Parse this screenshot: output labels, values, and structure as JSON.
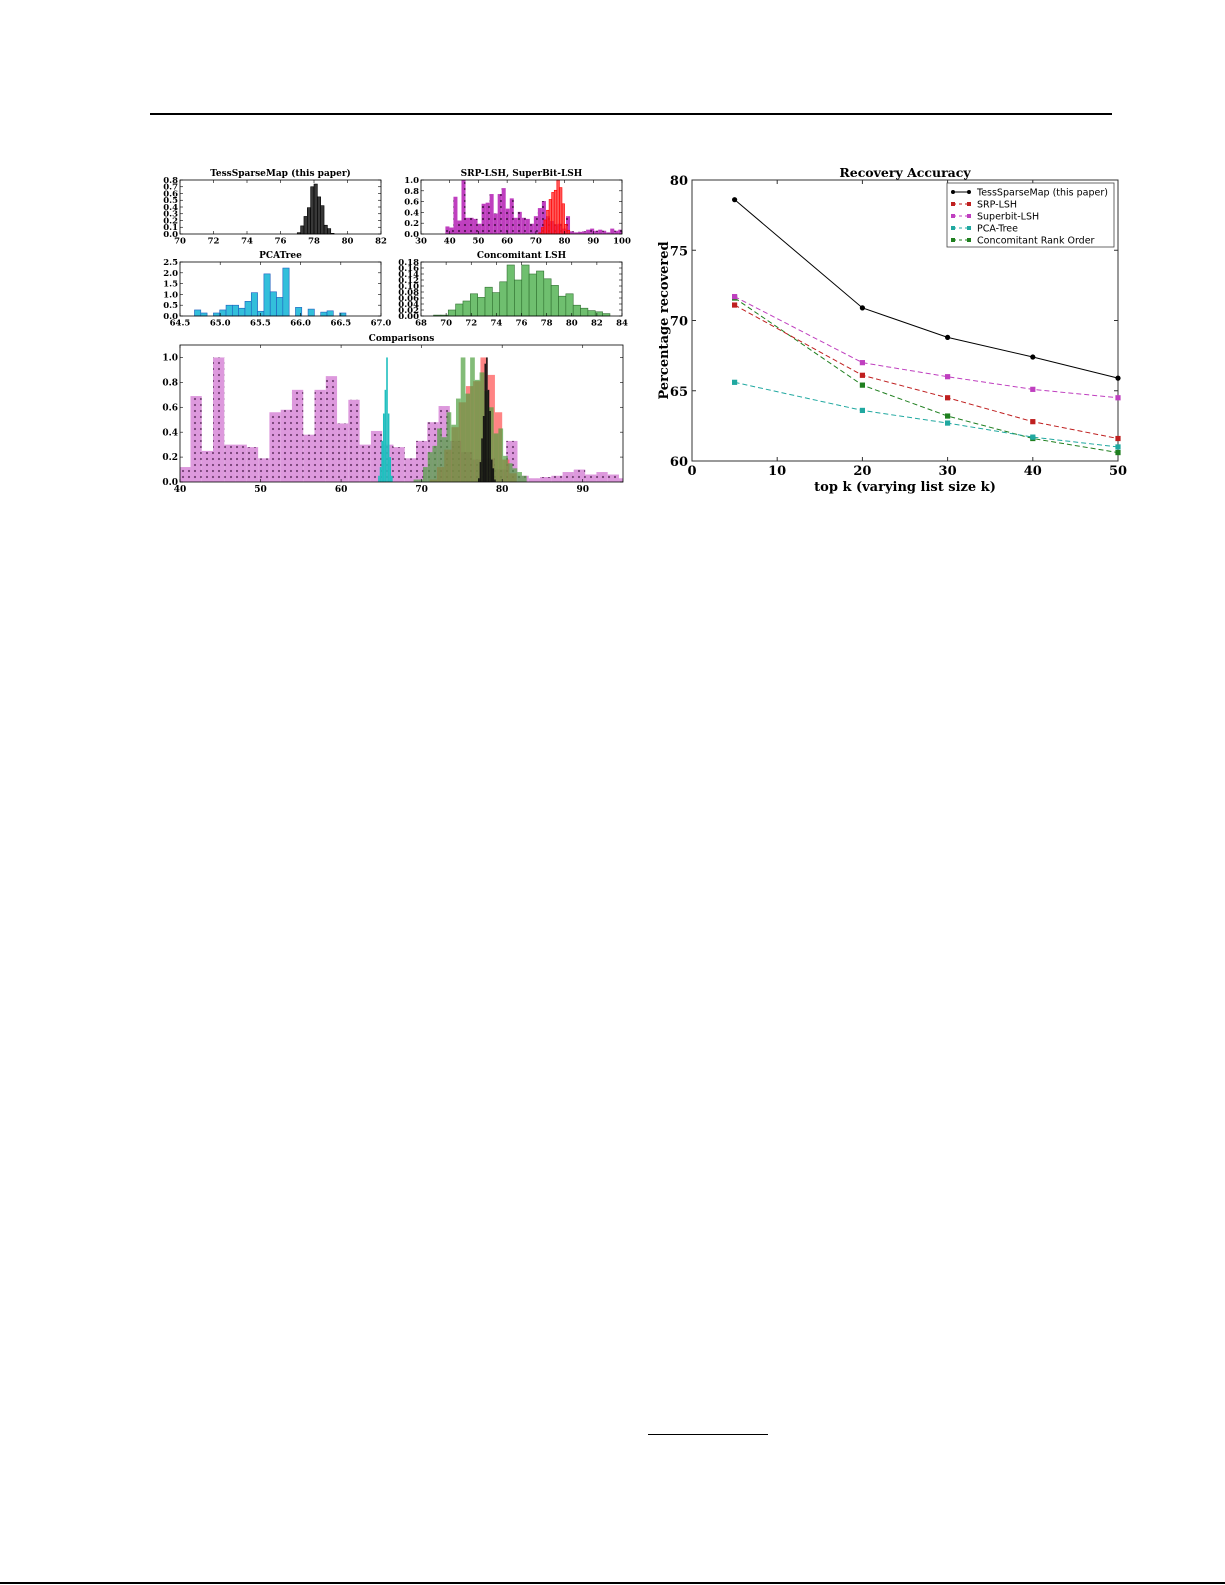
{
  "page": {
    "header_rule": true,
    "footnote_rule": true
  },
  "chart_data": [
    {
      "id": "tess",
      "type": "bar",
      "title": "TessSparseMap (this paper)",
      "xlim": [
        70,
        82
      ],
      "ylim": [
        0,
        0.8
      ],
      "xticks": [
        "70",
        "72",
        "74",
        "76",
        "78",
        "80",
        "82"
      ],
      "yticks": [
        "0.0",
        "0.1",
        "0.2",
        "0.3",
        "0.4",
        "0.5",
        "0.6",
        "0.7",
        "0.8"
      ],
      "bin_start": 77.0,
      "bin_width": 0.2,
      "values": [
        0.02,
        0.12,
        0.26,
        0.39,
        0.7,
        0.74,
        0.55,
        0.42,
        0.13,
        0.08,
        0.01
      ],
      "color": "#222222"
    },
    {
      "id": "srp",
      "type": "bar",
      "title": "SRP-LSH, SuperBit-LSH",
      "xlim": [
        30,
        100
      ],
      "ylim": [
        0,
        1.0
      ],
      "xticks": [
        "30",
        "40",
        "50",
        "60",
        "70",
        "80",
        "90",
        "100"
      ],
      "yticks": [
        "0.0",
        "0.2",
        "0.4",
        "0.6",
        "0.8",
        "1.0"
      ],
      "series": [
        {
          "name": "SuperBit-LSH",
          "color": "#bf3fbf",
          "hatch": "stars",
          "bin_start": 38.5,
          "bin_width": 1.4,
          "values": [
            0.14,
            0.12,
            0.69,
            0.25,
            1.0,
            0.3,
            0.3,
            0.28,
            0.19,
            0.56,
            0.58,
            0.74,
            0.38,
            0.74,
            0.85,
            0.47,
            0.66,
            0.3,
            0.41,
            0.3,
            0.28,
            0.19,
            0.33,
            0.48,
            0.61,
            0.33,
            0.24,
            0.18,
            0.19,
            0.1,
            0.33,
            0.05,
            0.03,
            0.04,
            0.05,
            0.08,
            0.1,
            0.06,
            0.08,
            0.06,
            0.03,
            0.1,
            0.06,
            0.08
          ]
        },
        {
          "name": "SRP-LSH",
          "color": "#ff2020",
          "bin_start": 71.0,
          "bin_width": 0.9,
          "values": [
            0.02,
            0.12,
            0.26,
            0.44,
            0.64,
            0.77,
            0.81,
            1.0,
            0.86,
            0.56,
            0.18,
            0.07
          ]
        }
      ]
    },
    {
      "id": "pca",
      "type": "bar",
      "title": "PCATree",
      "xlim": [
        64.5,
        67.0
      ],
      "ylim": [
        0,
        2.5
      ],
      "xticks": [
        "64.5",
        "65.0",
        "65.5",
        "66.0",
        "66.5",
        "67.0"
      ],
      "yticks": [
        "0.0",
        "0.5",
        "1.0",
        "1.5",
        "2.0",
        "2.5"
      ],
      "bin_start": 64.68,
      "bin_width": 0.0785,
      "values": [
        0.28,
        0.14,
        0,
        0.14,
        0.28,
        0.5,
        0.5,
        0.36,
        0.68,
        1.08,
        0.22,
        1.95,
        1.12,
        0.86,
        2.22,
        0,
        0.4,
        0,
        0.32,
        0,
        0.18,
        0.24,
        0,
        0.14
      ],
      "color": "#33bfdb",
      "edge": "#1f5fbf"
    },
    {
      "id": "concomitant",
      "type": "bar",
      "title": "Concomitant LSH",
      "xlim": [
        68,
        84
      ],
      "ylim": [
        0,
        0.18
      ],
      "xticks": [
        "68",
        "70",
        "72",
        "74",
        "76",
        "78",
        "80",
        "82",
        "84"
      ],
      "yticks": [
        "0.00",
        "0.02",
        "0.04",
        "0.06",
        "0.08",
        "0.10",
        "0.12",
        "0.14",
        "0.16",
        "0.18"
      ],
      "bin_start": 69.0,
      "bin_width": 0.585,
      "values": [
        0.003,
        0.003,
        0.02,
        0.04,
        0.05,
        0.074,
        0.062,
        0.096,
        0.078,
        0.114,
        0.17,
        0.12,
        0.17,
        0.14,
        0.15,
        0.124,
        0.102,
        0.066,
        0.074,
        0.036,
        0.026,
        0.018,
        0.014,
        0.008
      ],
      "color": "#6fbf6f",
      "edge": "#2f6f2f"
    },
    {
      "id": "comparisons",
      "type": "bar",
      "title": "Comparisons",
      "xlim": [
        40,
        95
      ],
      "ylim": [
        0,
        1.1
      ],
      "xticks": [
        "40",
        "50",
        "60",
        "70",
        "80",
        "90"
      ],
      "yticks": [
        "0.0",
        "0.2",
        "0.4",
        "0.6",
        "0.8",
        "1.0"
      ],
      "series": [
        {
          "name": "SuperBit-LSH",
          "color": "#dd99dd",
          "hatch": "stars",
          "bin_start": 38.5,
          "bin_width": 1.4,
          "values": [
            0.14,
            0.12,
            0.69,
            0.25,
            1.0,
            0.3,
            0.3,
            0.28,
            0.19,
            0.56,
            0.58,
            0.74,
            0.38,
            0.74,
            0.85,
            0.47,
            0.66,
            0.3,
            0.41,
            0.3,
            0.28,
            0.19,
            0.33,
            0.48,
            0.61,
            0.33,
            0.24,
            0.18,
            0.19,
            0.1,
            0.33,
            0.05,
            0.03,
            0.04,
            0.05,
            0.08,
            0.1,
            0.06,
            0.08,
            0.06,
            0.03,
            0.1,
            0.06,
            0.08
          ]
        },
        {
          "name": "PCATree",
          "color": "#20bfbf",
          "bin_start": 64.6,
          "bin_width": 0.2,
          "values": [
            0.05,
            0.12,
            0.33,
            0.55,
            0.74,
            1.0,
            0.55,
            0.2,
            0.05
          ]
        },
        {
          "name": "SRP-LSH",
          "color": "#ff5050",
          "bin_start": 71.0,
          "bin_width": 0.9,
          "values": [
            0.02,
            0.12,
            0.26,
            0.44,
            0.64,
            0.77,
            0.81,
            1.0,
            0.86,
            0.56,
            0.18,
            0.07
          ]
        },
        {
          "name": "Concomitant LSH",
          "color": "#4f9f3f",
          "bin_start": 69.0,
          "bin_width": 0.585,
          "values": [
            0.02,
            0.02,
            0.12,
            0.24,
            0.29,
            0.43,
            0.36,
            0.56,
            0.46,
            0.67,
            1.0,
            0.71,
            1.0,
            0.82,
            0.88,
            0.73,
            0.6,
            0.39,
            0.43,
            0.21,
            0.15,
            0.11,
            0.08,
            0.05
          ]
        },
        {
          "name": "TessSparseMap",
          "color": "#111111",
          "bin_start": 77.0,
          "bin_width": 0.2,
          "values": [
            0.03,
            0.16,
            0.35,
            0.53,
            0.95,
            1.0,
            0.74,
            0.57,
            0.18,
            0.11,
            0.02
          ]
        }
      ]
    },
    {
      "id": "recovery",
      "type": "line",
      "title": "Recovery Accuracy",
      "xlabel": "top k (varying list size k)",
      "ylabel": "Percentage recovered",
      "xlim": [
        0,
        50
      ],
      "ylim": [
        60,
        80
      ],
      "xticks": [
        "0",
        "10",
        "20",
        "30",
        "40",
        "50"
      ],
      "yticks": [
        "60",
        "65",
        "70",
        "75",
        "80"
      ],
      "grid": false,
      "legend_position": "upper right",
      "x": [
        5,
        20,
        30,
        40,
        50
      ],
      "series": [
        {
          "name": "TessSparseMap (this paper)",
          "color": "#000000",
          "marker": "circle",
          "dash": false,
          "values": [
            78.6,
            70.9,
            68.8,
            67.4,
            65.9
          ]
        },
        {
          "name": "SRP-LSH",
          "color": "#bf1f1f",
          "marker": "square",
          "dash": true,
          "values": [
            71.1,
            66.1,
            64.5,
            62.8,
            61.6
          ]
        },
        {
          "name": "Superbit-LSH",
          "color": "#bf3fbf",
          "marker": "square",
          "dash": true,
          "values": [
            71.7,
            67.0,
            66.0,
            65.1,
            64.5
          ]
        },
        {
          "name": "PCA-Tree",
          "color": "#20a8a0",
          "marker": "square",
          "dash": true,
          "values": [
            65.6,
            63.6,
            62.7,
            61.7,
            61.0
          ]
        },
        {
          "name": "Concomitant Rank Order",
          "color": "#1f7f1f",
          "marker": "square",
          "dash": true,
          "values": [
            71.6,
            65.4,
            63.2,
            61.6,
            60.6
          ]
        }
      ]
    }
  ]
}
